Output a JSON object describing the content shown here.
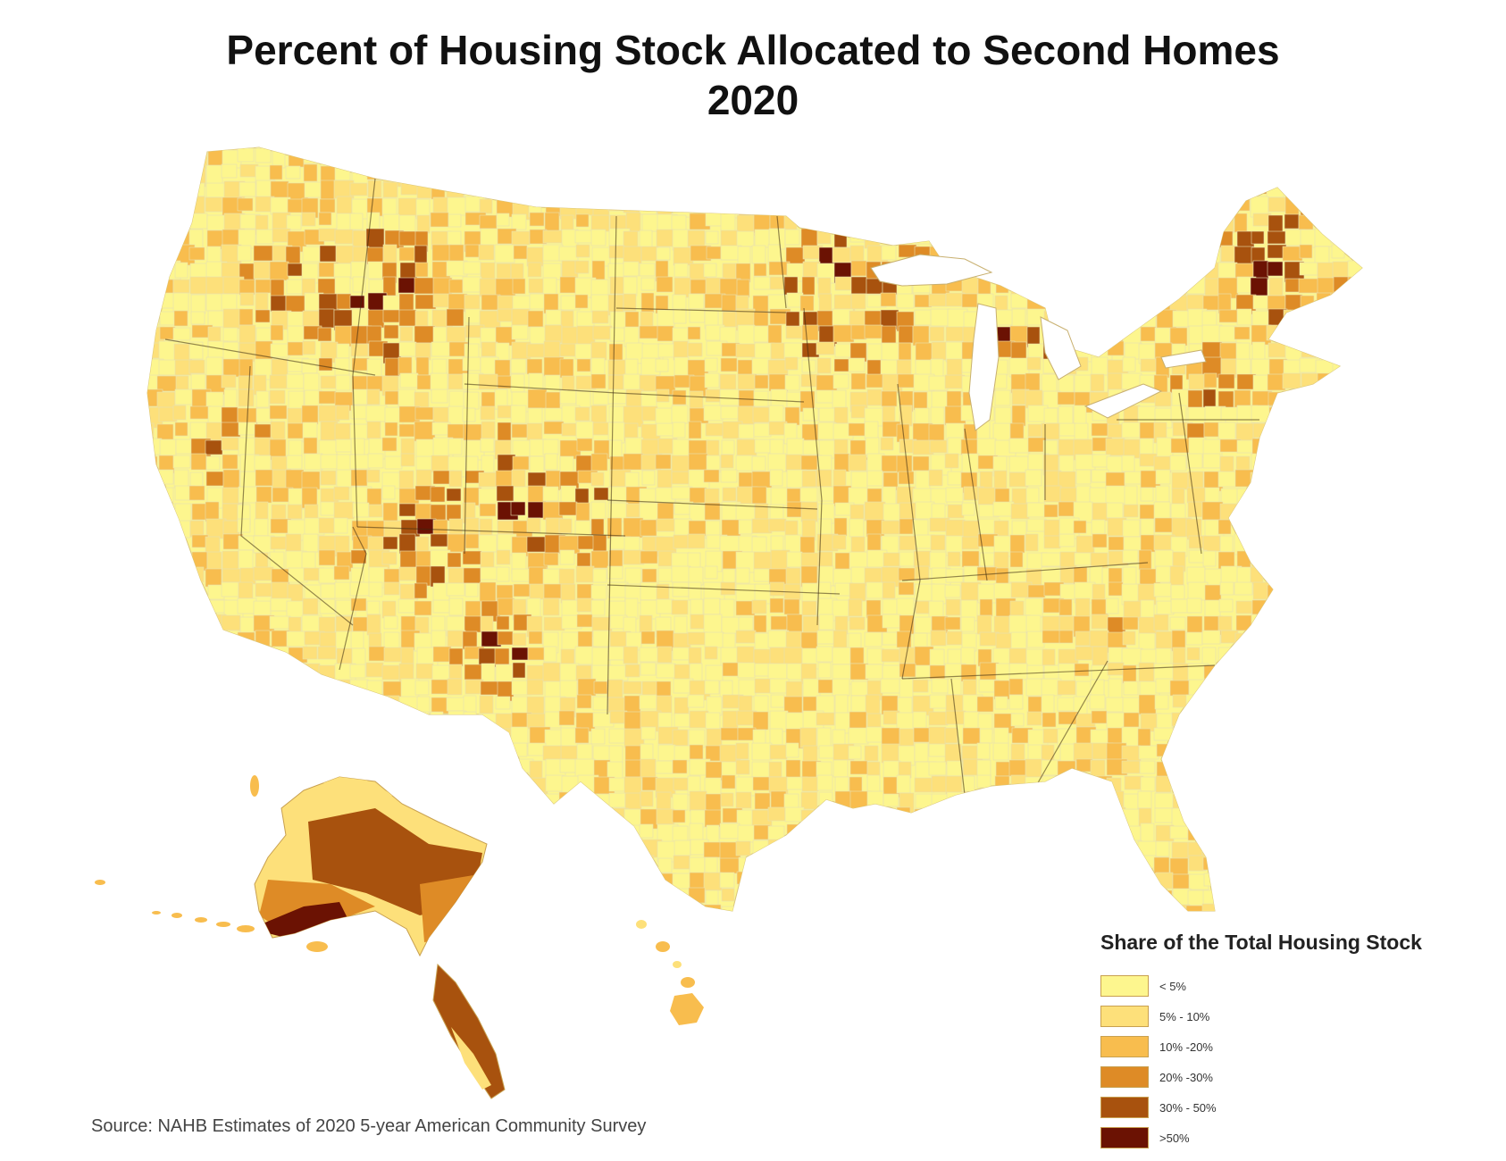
{
  "title": {
    "line1": "Percent of Housing Stock Allocated to Second Homes",
    "line2": "2020"
  },
  "legend": {
    "title": "Share of the Total Housing Stock",
    "items": [
      {
        "label": "< 5%",
        "color": "#fdf68e"
      },
      {
        "label": "5% - 10%",
        "color": "#fde07a"
      },
      {
        "label": "10% -20%",
        "color": "#f8bd4e"
      },
      {
        "label": "20% -30%",
        "color": "#de8b26"
      },
      {
        "label": "30% - 50%",
        "color": "#a8520e"
      },
      {
        "label": ">50%",
        "color": "#6b1203"
      }
    ]
  },
  "source": "Source: NAHB Estimates of 2020 5-year American Community Survey"
}
